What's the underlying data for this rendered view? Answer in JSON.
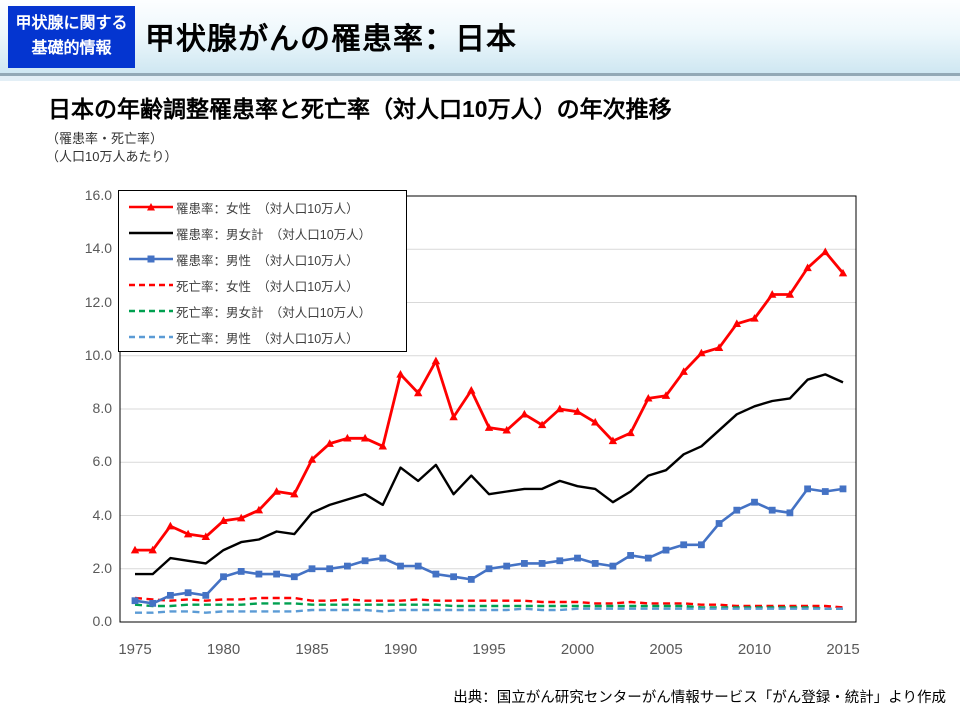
{
  "header": {
    "badge_line1": "甲状腺に関する",
    "badge_line2": "基礎的情報",
    "badge_color": "#0435d0",
    "title": "甲状腺がんの罹患率：日本"
  },
  "source": "出典：国立がん研究センターがん情報サービス「がん登録・統計」より作成",
  "chart_data": {
    "type": "line",
    "title": "日本の年齢調整罹患率と死亡率（対人口10万人）の年次推移",
    "ylabel_lines": [
      "（罹患率・死亡率）",
      "（人口10万人あたり）"
    ],
    "xlabel": "",
    "x_start": 1975,
    "x": [
      1975,
      1976,
      1977,
      1978,
      1979,
      1980,
      1981,
      1982,
      1983,
      1984,
      1985,
      1986,
      1987,
      1988,
      1989,
      1990,
      1991,
      1992,
      1993,
      1994,
      1995,
      1996,
      1997,
      1998,
      1999,
      2000,
      2001,
      2002,
      2003,
      2004,
      2005,
      2006,
      2007,
      2008,
      2009,
      2010,
      2011,
      2012,
      2013,
      2014,
      2015
    ],
    "xticks": [
      1975,
      1980,
      1985,
      1990,
      1995,
      2000,
      2005,
      2010,
      2015
    ],
    "yticks": [
      "0.0",
      "2.0",
      "4.0",
      "6.0",
      "8.0",
      "10.0",
      "12.0",
      "14.0",
      "16.0"
    ],
    "ylim": [
      0,
      16
    ],
    "grid": true,
    "grid_color": "#d9d9d9",
    "legend_position": "upper-left-inside",
    "series": [
      {
        "name": "罹患率：女性　（対人口10万人）",
        "color": "#ff0000",
        "style": "solid",
        "marker": "triangle",
        "values": [
          2.7,
          2.7,
          3.6,
          3.3,
          3.2,
          3.8,
          3.9,
          4.2,
          4.9,
          4.8,
          6.1,
          6.7,
          6.9,
          6.9,
          6.6,
          9.3,
          8.6,
          9.8,
          7.7,
          8.7,
          7.3,
          7.2,
          7.8,
          7.4,
          8.0,
          7.9,
          7.5,
          6.8,
          7.1,
          8.4,
          8.5,
          9.4,
          10.1,
          10.3,
          11.2,
          11.4,
          12.3,
          12.3,
          13.3,
          13.9,
          13.1
        ]
      },
      {
        "name": "罹患率：男女計　（対人口10万人）",
        "color": "#000000",
        "style": "solid",
        "marker": "none",
        "values": [
          1.8,
          1.8,
          2.4,
          2.3,
          2.2,
          2.7,
          3.0,
          3.1,
          3.4,
          3.3,
          4.1,
          4.4,
          4.6,
          4.8,
          4.4,
          5.8,
          5.3,
          5.9,
          4.8,
          5.5,
          4.8,
          4.9,
          5.0,
          5.0,
          5.3,
          5.1,
          5.0,
          4.5,
          4.9,
          5.5,
          5.7,
          6.3,
          6.6,
          7.2,
          7.8,
          8.1,
          8.3,
          8.4,
          9.1,
          9.3,
          9.0
        ]
      },
      {
        "name": "罹患率：男性　（対人口10万人）",
        "color": "#4472c4",
        "style": "solid",
        "marker": "square",
        "values": [
          0.8,
          0.7,
          1.0,
          1.1,
          1.0,
          1.7,
          1.9,
          1.8,
          1.8,
          1.7,
          2.0,
          2.0,
          2.1,
          2.3,
          2.4,
          2.1,
          2.1,
          1.8,
          1.7,
          1.6,
          2.0,
          2.1,
          2.2,
          2.2,
          2.3,
          2.4,
          2.2,
          2.1,
          2.5,
          2.4,
          2.7,
          2.9,
          2.9,
          3.7,
          4.2,
          4.5,
          4.2,
          4.1,
          5.0,
          4.9,
          5.0
        ]
      },
      {
        "name": "死亡率：女性　（対人口10万人）",
        "color": "#ff0000",
        "style": "dashed",
        "marker": "none",
        "values": [
          0.9,
          0.85,
          0.8,
          0.85,
          0.8,
          0.85,
          0.85,
          0.9,
          0.9,
          0.9,
          0.8,
          0.8,
          0.85,
          0.8,
          0.8,
          0.8,
          0.85,
          0.8,
          0.8,
          0.8,
          0.8,
          0.8,
          0.8,
          0.75,
          0.75,
          0.75,
          0.7,
          0.7,
          0.75,
          0.7,
          0.7,
          0.7,
          0.65,
          0.65,
          0.6,
          0.6,
          0.6,
          0.6,
          0.6,
          0.6,
          0.55
        ]
      },
      {
        "name": "死亡率：男女計　（対人口10万人）",
        "color": "#00a050",
        "style": "dashed",
        "marker": "none",
        "values": [
          0.65,
          0.6,
          0.6,
          0.65,
          0.65,
          0.65,
          0.65,
          0.7,
          0.7,
          0.7,
          0.65,
          0.65,
          0.65,
          0.65,
          0.65,
          0.65,
          0.65,
          0.65,
          0.6,
          0.6,
          0.6,
          0.6,
          0.6,
          0.6,
          0.6,
          0.6,
          0.6,
          0.6,
          0.6,
          0.6,
          0.6,
          0.6,
          0.55,
          0.55,
          0.55,
          0.55,
          0.55,
          0.55,
          0.55,
          0.5,
          0.5
        ]
      },
      {
        "name": "死亡率：男性　（対人口10万人）",
        "color": "#5b9bd5",
        "style": "dashed",
        "marker": "none",
        "values": [
          0.35,
          0.35,
          0.4,
          0.4,
          0.35,
          0.4,
          0.4,
          0.4,
          0.4,
          0.4,
          0.45,
          0.45,
          0.45,
          0.45,
          0.4,
          0.45,
          0.45,
          0.45,
          0.45,
          0.45,
          0.45,
          0.45,
          0.5,
          0.45,
          0.45,
          0.5,
          0.5,
          0.5,
          0.5,
          0.5,
          0.5,
          0.5,
          0.5,
          0.5,
          0.5,
          0.5,
          0.5,
          0.5,
          0.5,
          0.5,
          0.5
        ]
      }
    ]
  }
}
